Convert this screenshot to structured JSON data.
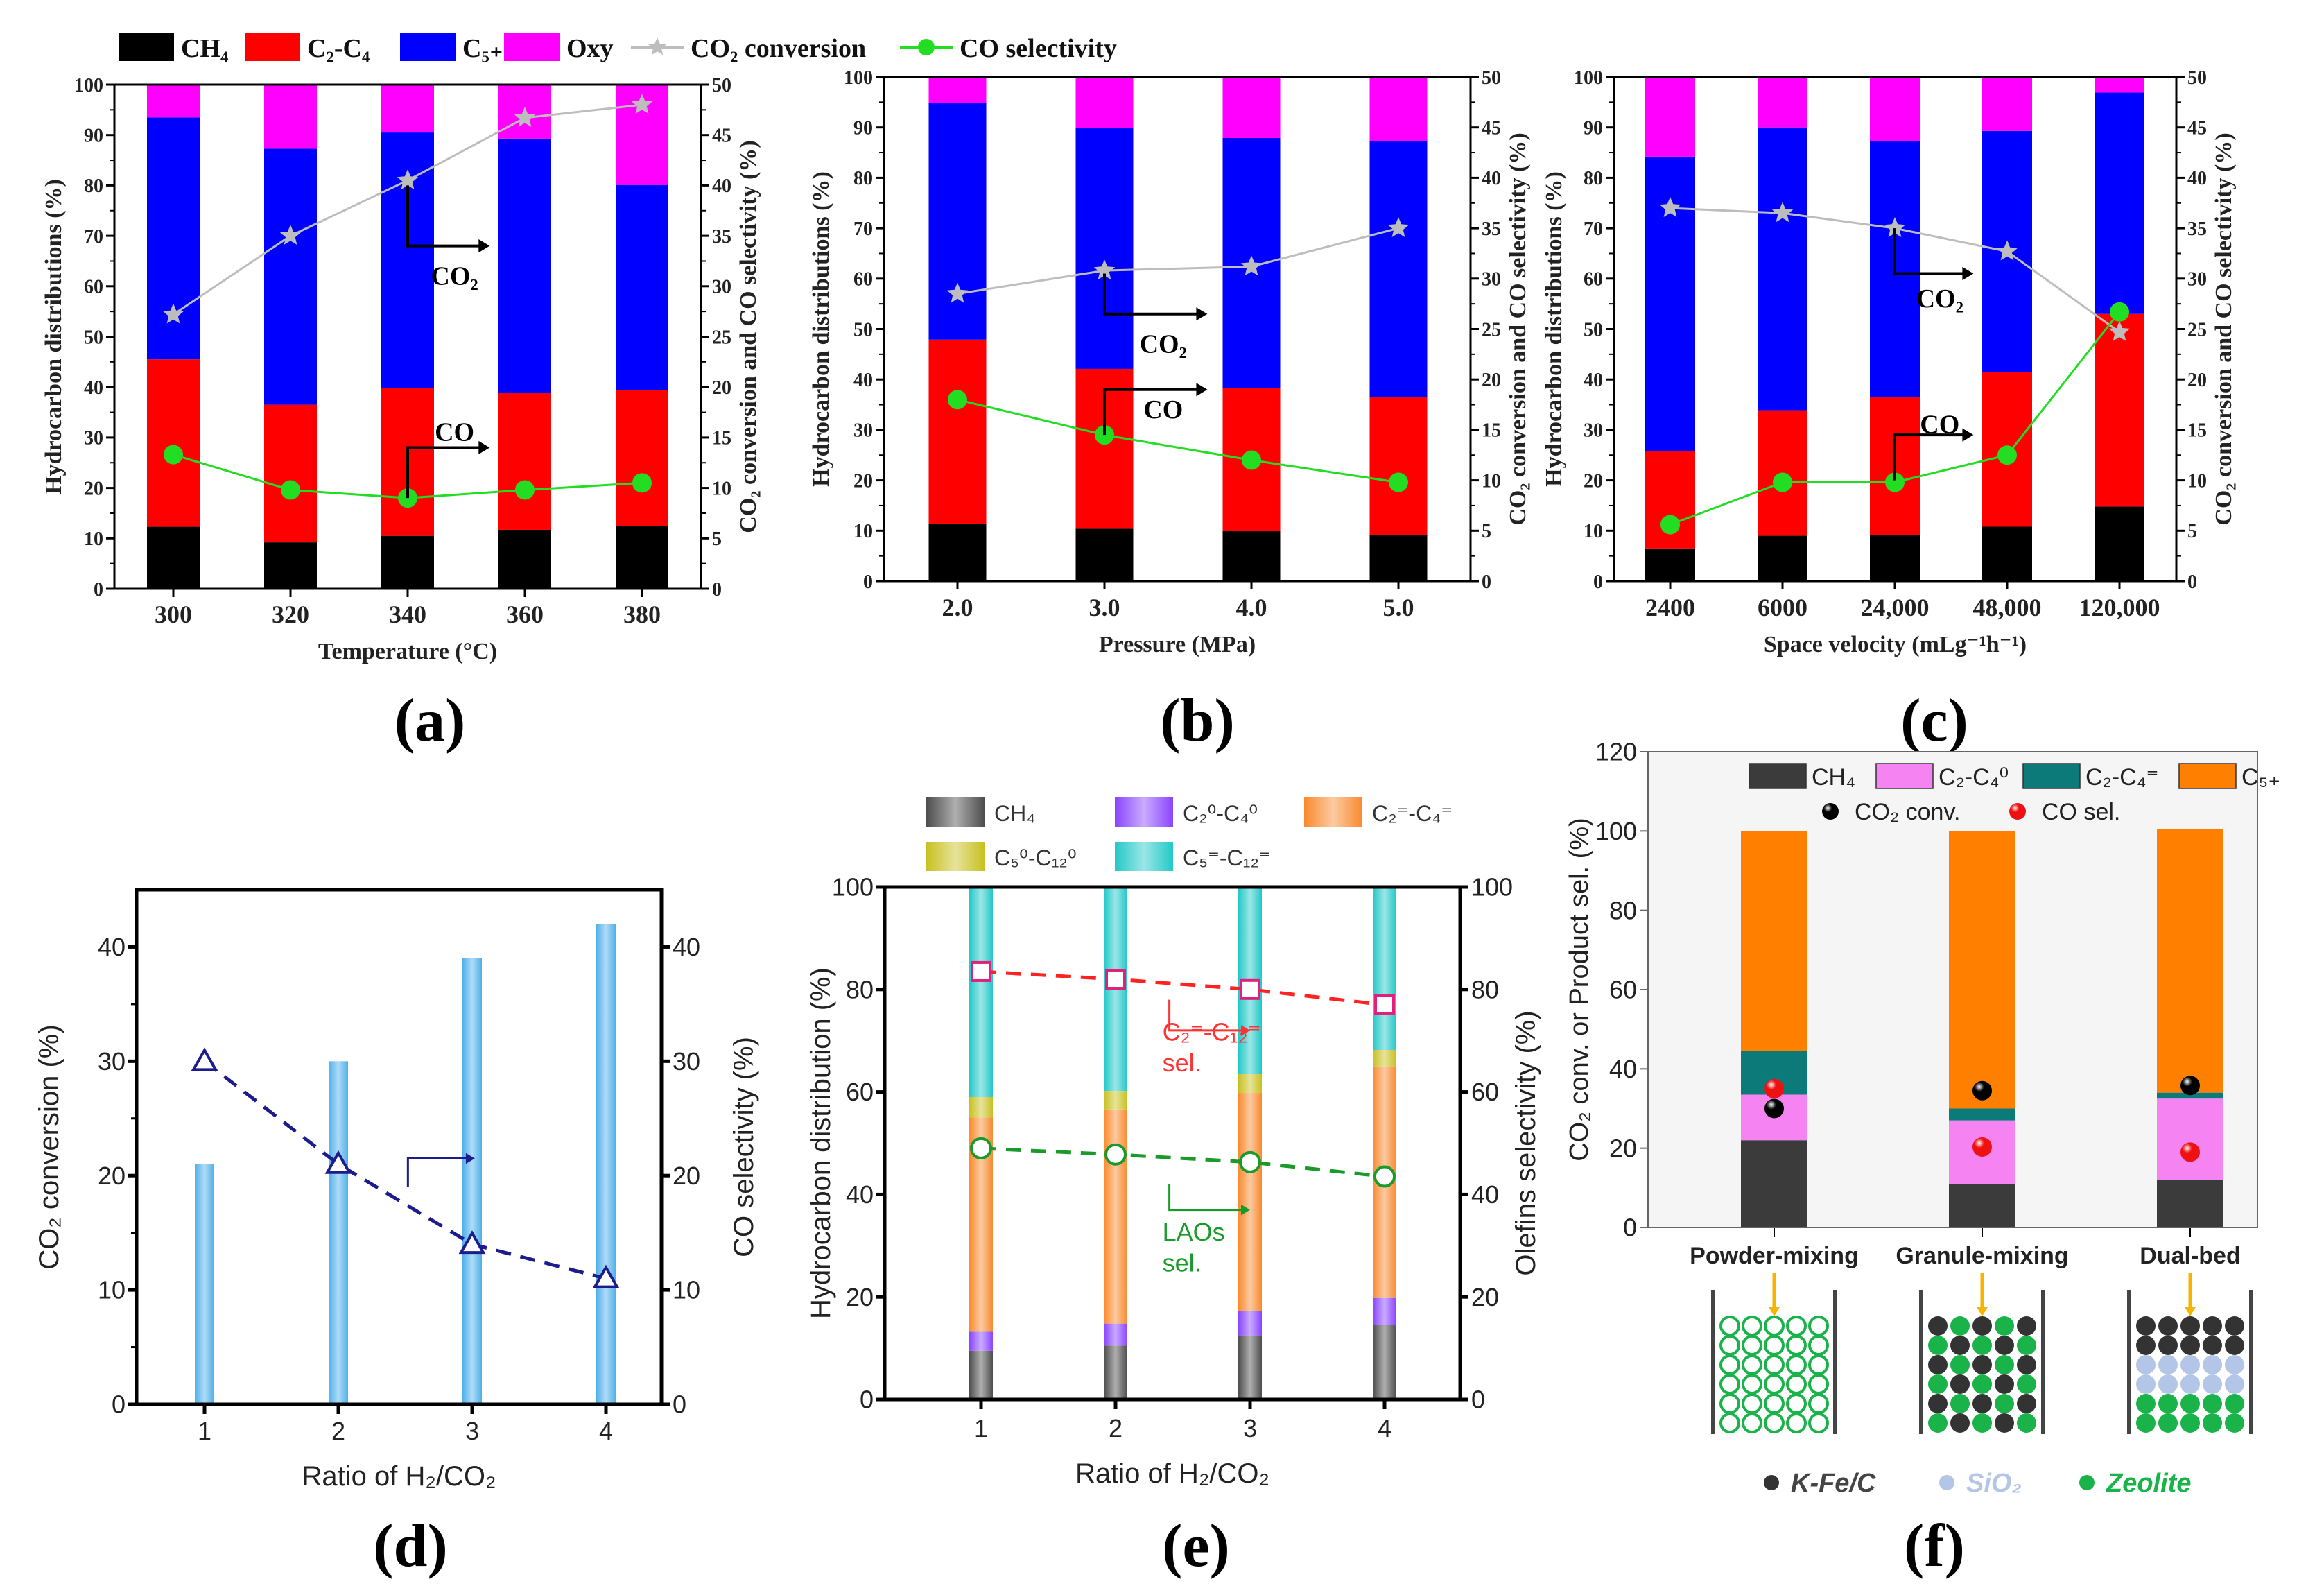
{
  "chart_data": [
    {
      "id": "a",
      "type": "bar",
      "stacked": true,
      "panel_label": "(a)",
      "categories": [
        "300",
        "320",
        "340",
        "360",
        "380"
      ],
      "xlabel": "Temperature (°C)",
      "ylabel": "Hydrocarbon distributions (%)",
      "y2label": "CO₂ conversion and CO selectivity (%)",
      "ylim": [
        0,
        100
      ],
      "ytick_step": 10,
      "y2lim": [
        0,
        50
      ],
      "y2tick_step": 5,
      "grid": false,
      "series": [
        {
          "name": "CH₄",
          "color": "#000000",
          "values": [
            12.3,
            9.2,
            10.5,
            11.7,
            12.4
          ]
        },
        {
          "name": "C₂-C₄",
          "color": "#ff0000",
          "values": [
            33.2,
            27.3,
            29.3,
            27.2,
            27.0
          ]
        },
        {
          "name": "C₅₊",
          "color": "#0000ff",
          "values": [
            48.0,
            50.8,
            50.7,
            50.4,
            40.7
          ]
        },
        {
          "name": "Oxy",
          "color": "#ff00ff",
          "values": [
            6.5,
            12.7,
            9.5,
            10.7,
            19.9
          ]
        }
      ],
      "lines": [
        {
          "name": "CO₂ conversion",
          "axis": "right",
          "color": "#bdbdbd",
          "marker": "star",
          "values": [
            27.2,
            35.0,
            40.5,
            46.7,
            48.0
          ]
        },
        {
          "name": "CO selectivity",
          "axis": "right",
          "color": "#22dd22",
          "marker": "circle",
          "values": [
            13.3,
            9.8,
            9.0,
            9.8,
            10.5
          ]
        }
      ],
      "annotations": [
        {
          "text": "CO₂"
        },
        {
          "text": "CO"
        }
      ],
      "legend_position": "top"
    },
    {
      "id": "b",
      "type": "bar",
      "stacked": true,
      "panel_label": "(b)",
      "categories": [
        "2.0",
        "3.0",
        "4.0",
        "5.0"
      ],
      "xlabel": "Pressure (MPa)",
      "ylabel": "Hydrocarbon distributions (%)",
      "y2label": "CO₂ conversion and CO selectivity (%)",
      "ylim": [
        0,
        100
      ],
      "ytick_step": 10,
      "y2lim": [
        0,
        50
      ],
      "y2tick_step": 5,
      "grid": false,
      "series": [
        {
          "name": "CH₄",
          "color": "#000000",
          "values": [
            11.3,
            10.4,
            9.9,
            9.1
          ]
        },
        {
          "name": "C₂-C₄",
          "color": "#ff0000",
          "values": [
            36.6,
            31.7,
            28.4,
            27.4
          ]
        },
        {
          "name": "C₅₊",
          "color": "#0000ff",
          "values": [
            46.9,
            47.8,
            49.6,
            50.8
          ]
        },
        {
          "name": "Oxy",
          "color": "#ff00ff",
          "values": [
            5.2,
            10.1,
            12.1,
            12.7
          ]
        }
      ],
      "lines": [
        {
          "name": "CO₂ conversion",
          "axis": "right",
          "color": "#bdbdbd",
          "marker": "star",
          "values": [
            28.5,
            30.8,
            31.2,
            35.0
          ]
        },
        {
          "name": "CO selectivity",
          "axis": "right",
          "color": "#22dd22",
          "marker": "circle",
          "values": [
            18.0,
            14.5,
            12.0,
            9.8
          ]
        }
      ],
      "annotations": [
        {
          "text": "CO₂"
        },
        {
          "text": "CO"
        }
      ]
    },
    {
      "id": "c",
      "type": "bar",
      "stacked": true,
      "panel_label": "(c)",
      "categories": [
        "2400",
        "6000",
        "24,000",
        "48,000",
        "120,000"
      ],
      "xlabel": "Space velocity (mLg⁻¹h⁻¹)",
      "ylabel": "Hydrocarbon distributions (%)",
      "y2label": "CO₂ conversion and CO selectivity (%)",
      "ylim": [
        0,
        100
      ],
      "ytick_step": 10,
      "y2lim": [
        0,
        50
      ],
      "y2tick_step": 5,
      "grid": false,
      "series": [
        {
          "name": "CH₄",
          "color": "#000000",
          "values": [
            6.5,
            9.0,
            9.2,
            10.8,
            14.8
          ]
        },
        {
          "name": "C₂-C₄",
          "color": "#ff0000",
          "values": [
            19.3,
            24.9,
            27.3,
            30.6,
            38.2
          ]
        },
        {
          "name": "C₅₊",
          "color": "#0000ff",
          "values": [
            58.4,
            56.1,
            50.8,
            47.9,
            43.9
          ]
        },
        {
          "name": "Oxy",
          "color": "#ff00ff",
          "values": [
            15.8,
            10.0,
            12.7,
            10.7,
            3.1
          ]
        }
      ],
      "lines": [
        {
          "name": "CO₂ conversion",
          "axis": "right",
          "color": "#bdbdbd",
          "marker": "star",
          "values": [
            37.0,
            36.5,
            35.0,
            32.7,
            24.7
          ]
        },
        {
          "name": "CO selectivity",
          "axis": "right",
          "color": "#22dd22",
          "marker": "circle",
          "values": [
            5.6,
            9.8,
            9.8,
            12.5,
            26.7
          ]
        }
      ],
      "annotations": [
        {
          "text": "CO₂"
        },
        {
          "text": "CO"
        }
      ]
    },
    {
      "id": "d",
      "type": "bar",
      "stacked": false,
      "panel_label": "(d)",
      "categories": [
        "1",
        "2",
        "3",
        "4"
      ],
      "xlabel": "Ratio of H₂/CO₂",
      "ylabel": "CO₂ conversion (%)",
      "y2label": "CO selectivity (%)",
      "ylim": [
        0,
        45
      ],
      "ytick_step": 10,
      "y2lim": [
        0,
        45
      ],
      "y2tick_step": 10,
      "grid": false,
      "series": [
        {
          "name": "CO₂ conversion",
          "color": "#4fb0ea",
          "values": [
            21,
            30,
            39,
            42
          ]
        }
      ],
      "lines": [
        {
          "axis": "right",
          "color": "#1c1c8c",
          "marker": "triangle",
          "dashed": true,
          "values": [
            30,
            21,
            14,
            11
          ]
        }
      ]
    },
    {
      "id": "e",
      "type": "bar",
      "stacked": true,
      "panel_label": "(e)",
      "categories": [
        "1",
        "2",
        "3",
        "4"
      ],
      "xlabel": "Ratio of H₂/CO₂",
      "ylabel": "Hydrocarbon distribution (%)",
      "y2label": "Olefins selectivity (%)",
      "ylim": [
        0,
        100
      ],
      "ytick_step": 20,
      "y2lim": [
        0,
        100
      ],
      "y2tick_step": 20,
      "grid": false,
      "series": [
        {
          "name": "CH₄",
          "color": "#4d4d4d",
          "values": [
            9.5,
            10.5,
            12.5,
            14.5
          ]
        },
        {
          "name": "C₂⁰-C₄⁰",
          "color": "#8a44ff",
          "values": [
            3.7,
            4.3,
            4.7,
            5.3
          ]
        },
        {
          "name": "C₂⁼-C₄⁼",
          "color": "#f98a2e",
          "values": [
            41.8,
            41.8,
            42.6,
            45.2
          ]
        },
        {
          "name": "C₅⁰-C₁₂⁰",
          "color": "#c8c020",
          "values": [
            4.0,
            3.6,
            3.7,
            3.2
          ]
        },
        {
          "name": "C₅⁼-C₁₂⁼",
          "color": "#22c8c8",
          "values": [
            41.0,
            39.8,
            36.5,
            31.8
          ]
        }
      ],
      "lines": [
        {
          "axis": "right",
          "color": "#ff2222",
          "marker_color": "#e0207a",
          "marker": "square",
          "dashed": true,
          "values": [
            83.5,
            82.0,
            80.0,
            77.0
          ]
        },
        {
          "axis": "right",
          "color": "#1a9a2a",
          "marker_color": "#1a9a2a",
          "marker": "circle-open",
          "dashed": true,
          "values": [
            49.0,
            47.8,
            46.3,
            43.5
          ]
        }
      ],
      "annotations": [
        {
          "lines": [
            "C₂⁼-C₁₂⁼",
            "sel."
          ],
          "color": "#ff3333"
        },
        {
          "lines": [
            "LAOs",
            "sel."
          ],
          "color": "#1a9a2a"
        }
      ],
      "legend_position": "top"
    },
    {
      "id": "f",
      "type": "bar",
      "stacked": true,
      "panel_label": "(f)",
      "categories": [
        "Powder-mixing",
        "Granule-mixing",
        "Dual-bed"
      ],
      "xlabel": "",
      "ylabel": "CO₂ conv. or Product sel. (%)",
      "ylim": [
        0,
        120
      ],
      "ytick_step": 20,
      "grid": false,
      "series": [
        {
          "name": "CH₄",
          "color": "#3b3b3b",
          "values": [
            22.0,
            11.0,
            12.0
          ]
        },
        {
          "name": "C₂-C₄⁰",
          "color": "#f584f2",
          "values": [
            11.5,
            16.0,
            20.5
          ]
        },
        {
          "name": "C₂-C₄⁼",
          "color": "#0d7a7a",
          "values": [
            11.0,
            3.0,
            1.5
          ]
        },
        {
          "name": "C₅₊",
          "color": "#ff8000",
          "values": [
            55.5,
            70.0,
            66.5
          ]
        }
      ],
      "points": [
        {
          "name": "CO₂ conv.",
          "color": "#000000",
          "values": [
            30.0,
            34.5,
            35.8
          ]
        },
        {
          "name": "CO sel.",
          "color": "#ee1111",
          "values": [
            35.0,
            20.3,
            19.0
          ]
        }
      ],
      "materials": [
        {
          "name": "K-Fe/C",
          "color": "#333333"
        },
        {
          "name": "SiO₂",
          "color": "#b4c6e7"
        },
        {
          "name": "Zeolite",
          "color": "#19b34a"
        }
      ],
      "legend_position": "top-inside"
    }
  ]
}
